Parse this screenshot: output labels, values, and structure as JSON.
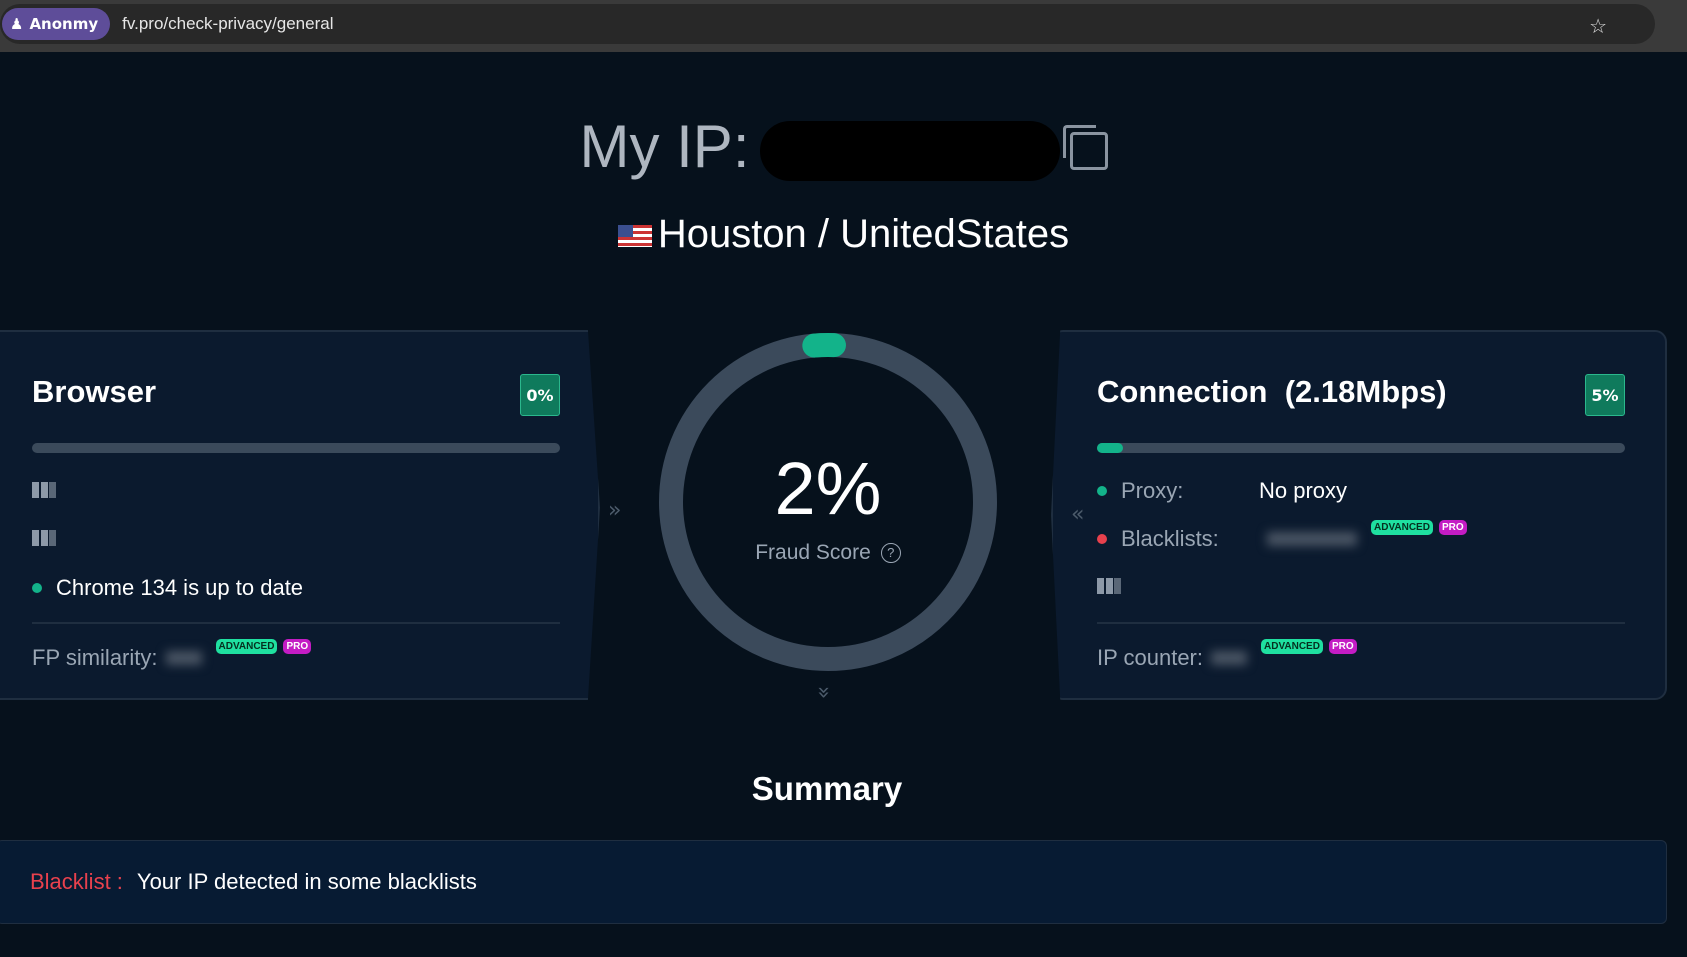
{
  "browser_bar": {
    "profile_label": "Anonmy",
    "url": "fv.pro/check-privacy/general"
  },
  "header": {
    "ip_label": "My IP:",
    "location": "Houston / UnitedStates"
  },
  "browser_card": {
    "title": "Browser",
    "score": "0%",
    "score_fraction": 0,
    "status": "Chrome 134 is up to date",
    "fp_label": "FP similarity:",
    "tag_advanced": "ADVANCED",
    "tag_pro": "PRO"
  },
  "gauge": {
    "value": "2%",
    "value_fraction": 0.02,
    "label": "Fraud Score",
    "help": "?"
  },
  "connection_card": {
    "title": "Connection  (2.18Mbps)",
    "score": "5%",
    "score_fraction": 0.05,
    "proxy_label": "Proxy:",
    "proxy_value": "No proxy",
    "blacklists_label": "Blacklists:",
    "ip_counter_label": "IP counter:",
    "tag_advanced": "ADVANCED",
    "tag_pro": "PRO"
  },
  "summary": {
    "title": "Summary",
    "alert_label": "Blacklist :",
    "alert_text": "Your IP detected in some blacklists"
  },
  "colors": {
    "accent": "#13b38a",
    "danger": "#e8414d",
    "profile": "#5e4d99"
  }
}
